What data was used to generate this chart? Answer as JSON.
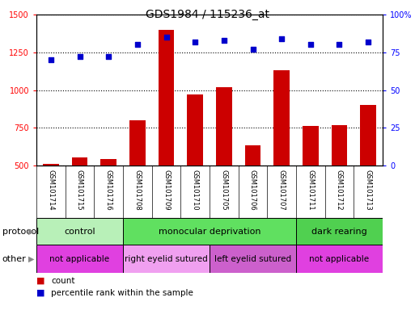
{
  "title": "GDS1984 / 115236_at",
  "samples": [
    "GSM101714",
    "GSM101715",
    "GSM101716",
    "GSM101708",
    "GSM101709",
    "GSM101710",
    "GSM101705",
    "GSM101706",
    "GSM101707",
    "GSM101711",
    "GSM101712",
    "GSM101713"
  ],
  "counts": [
    510,
    555,
    545,
    800,
    1400,
    970,
    1020,
    635,
    1130,
    760,
    770,
    900
  ],
  "percentiles": [
    70,
    72,
    72,
    80,
    85,
    82,
    83,
    77,
    84,
    80,
    80,
    82
  ],
  "protocol_groups": [
    {
      "label": "control",
      "start": 0,
      "end": 3,
      "color": "#b8f0b8"
    },
    {
      "label": "monocular deprivation",
      "start": 3,
      "end": 9,
      "color": "#60e060"
    },
    {
      "label": "dark rearing",
      "start": 9,
      "end": 12,
      "color": "#50d050"
    }
  ],
  "other_groups": [
    {
      "label": "not applicable",
      "start": 0,
      "end": 3,
      "color": "#e040e0"
    },
    {
      "label": "right eyelid sutured",
      "start": 3,
      "end": 6,
      "color": "#f0a0f0"
    },
    {
      "label": "left eyelid sutured",
      "start": 6,
      "end": 9,
      "color": "#cc60cc"
    },
    {
      "label": "not applicable",
      "start": 9,
      "end": 12,
      "color": "#e040e0"
    }
  ],
  "ylim_left": [
    500,
    1500
  ],
  "ylim_right": [
    0,
    100
  ],
  "yticks_left": [
    500,
    750,
    1000,
    1250,
    1500
  ],
  "yticks_right": [
    0,
    25,
    50,
    75,
    100
  ],
  "bar_color": "#cc0000",
  "dot_color": "#0000cc",
  "background_color": "#ffffff",
  "row_label_bg": "#c8c8c8",
  "protocol_label": "protocol",
  "other_label": "other",
  "legend_count": "count",
  "legend_percentile": "percentile rank within the sample"
}
